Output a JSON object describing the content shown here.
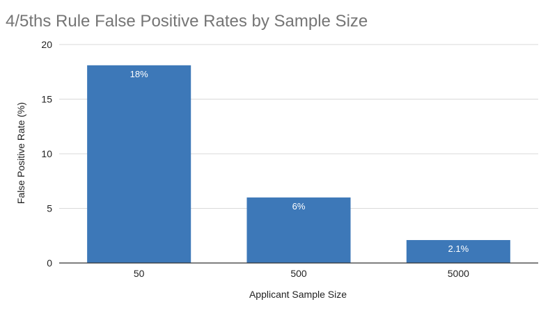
{
  "chart_data": {
    "type": "bar",
    "title": "4/5ths Rule False Positive Rates by Sample Size",
    "xlabel": "Applicant Sample Size",
    "ylabel": "False Positive Rate (%)",
    "categories": [
      "50",
      "500",
      "5000"
    ],
    "values": [
      18.1,
      6.0,
      2.1
    ],
    "data_labels": [
      "18%",
      "6%",
      "2.1%"
    ],
    "ylim": [
      0,
      20
    ],
    "yticks": [
      0,
      5,
      10,
      15,
      20
    ],
    "ytick_labels": [
      "0",
      "5",
      "10",
      "15",
      "20"
    ],
    "grid": true,
    "legend": "none",
    "colors": {
      "bar": "#3d78b8",
      "grid": "#d9d9d9",
      "title": "#757575"
    }
  }
}
